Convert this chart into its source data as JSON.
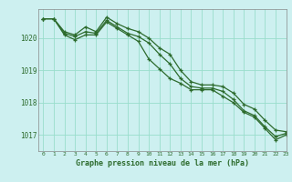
{
  "title": "Graphe pression niveau de la mer (hPa)",
  "bg_color": "#cdf0f0",
  "grid_color": "#99ddcc",
  "line_color": "#2d6b2d",
  "xlim": [
    -0.5,
    23
  ],
  "ylim": [
    1016.5,
    1020.9
  ],
  "yticks": [
    1017,
    1018,
    1019,
    1020
  ],
  "xticks": [
    0,
    1,
    2,
    3,
    4,
    5,
    6,
    7,
    8,
    9,
    10,
    11,
    12,
    13,
    14,
    15,
    16,
    17,
    18,
    19,
    20,
    21,
    22,
    23
  ],
  "series1": [
    1020.6,
    1020.6,
    1020.2,
    1020.1,
    1020.35,
    1020.2,
    1020.65,
    1020.45,
    1020.3,
    1020.2,
    1020.0,
    1019.7,
    1019.5,
    1019.0,
    1018.65,
    1018.55,
    1018.55,
    1018.5,
    1018.3,
    1017.95,
    1017.8,
    1017.45,
    1017.15,
    1017.1
  ],
  "series2": [
    1020.6,
    1020.6,
    1020.15,
    1020.05,
    1020.2,
    1020.15,
    1020.55,
    1020.35,
    1020.15,
    1020.05,
    1019.85,
    1019.5,
    1019.2,
    1018.75,
    1018.5,
    1018.45,
    1018.45,
    1018.35,
    1018.1,
    1017.75,
    1017.6,
    1017.25,
    1016.95,
    1017.05
  ],
  "series3": [
    1020.6,
    1020.6,
    1020.1,
    1019.95,
    1020.1,
    1020.1,
    1020.5,
    1020.3,
    1020.1,
    1019.9,
    1019.35,
    1019.05,
    1018.75,
    1018.6,
    1018.4,
    1018.4,
    1018.4,
    1018.2,
    1018.0,
    1017.7,
    1017.55,
    1017.2,
    1016.85,
    1017.0
  ]
}
